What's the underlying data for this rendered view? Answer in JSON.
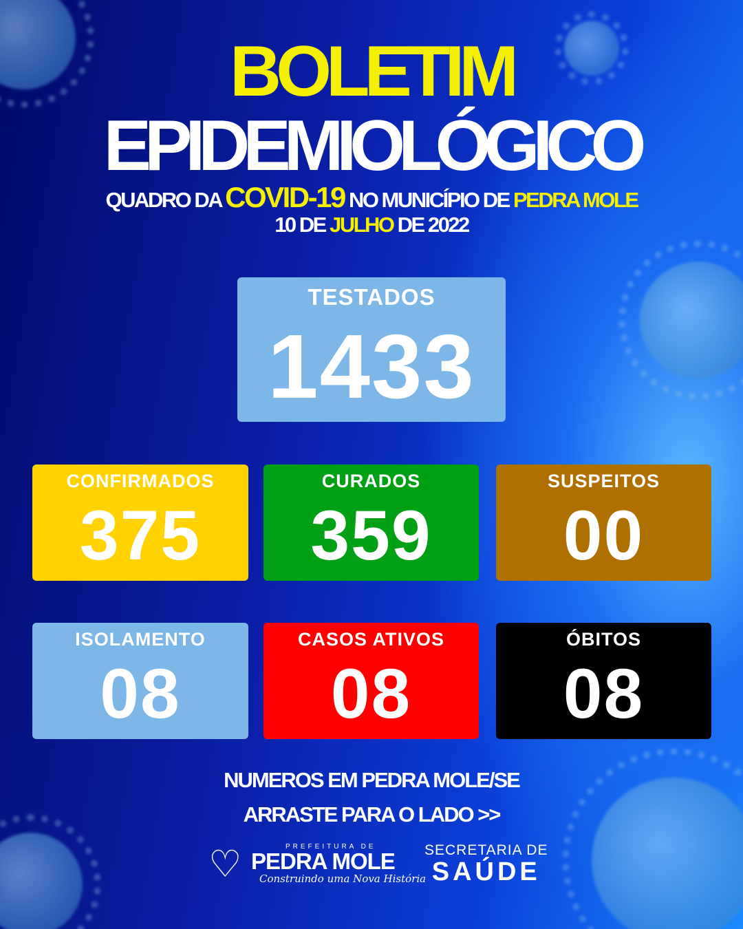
{
  "header": {
    "title_line1": "BOLETIM",
    "title_line2": "EPIDEMIOLÓGICO",
    "subtitle": {
      "pre": "QUADRO DA ",
      "highlight": "COVID-19",
      "mid": " NO MUNICÍPIO DE ",
      "place": "PEDRA MOLE"
    },
    "date": {
      "day": "10 DE ",
      "month": "JULHO",
      "year": " DE 2022"
    }
  },
  "stats": {
    "testados": {
      "label": "TESTADOS",
      "value": "1433",
      "color": "#7db7e8"
    },
    "confirmados": {
      "label": "CONFIRMADOS",
      "value": "375",
      "color": "#ffd200"
    },
    "curados": {
      "label": "CURADOS",
      "value": "359",
      "color": "#00a015"
    },
    "suspeitos": {
      "label": "SUSPEITOS",
      "value": "00",
      "color": "#b07000"
    },
    "isolamento": {
      "label": "ISOLAMENTO",
      "value": "08",
      "color": "#7db7e8"
    },
    "casos_ativos": {
      "label": "CASOS ATIVOS",
      "value": "08",
      "color": "#ff0000"
    },
    "obitos": {
      "label": "ÓBITOS",
      "value": "08",
      "color": "#000000"
    }
  },
  "footer": {
    "line1": "NUMEROS EM PEDRA MOLE/SE",
    "line2": "ARRASTE PARA O LADO >>",
    "logo": {
      "prefix": "PREFEITURA DE",
      "name": "PEDRA MOLE",
      "slogan": "Construindo uma Nova História"
    },
    "secretaria": {
      "line1": "SECRETARIA DE",
      "line2": "SAÚDE"
    }
  }
}
